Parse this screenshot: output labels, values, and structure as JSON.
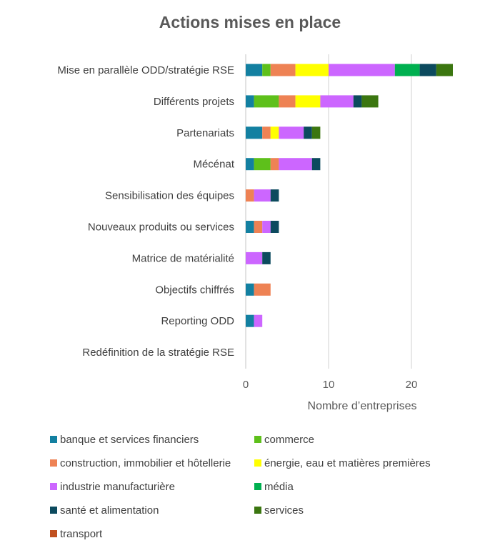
{
  "chart_data": {
    "type": "bar",
    "orientation": "horizontal",
    "stacked": true,
    "title": "Actions mises en place",
    "xlabel": "Nombre d’entreprises",
    "ylabel": "",
    "xlim": [
      0,
      25
    ],
    "xticks": [
      0,
      10,
      20
    ],
    "grid": true,
    "legend_position": "bottom",
    "categories": [
      "Mise en parallèle ODD/stratégie RSE",
      "Différents projets",
      "Partenariats",
      "Mécénat",
      "Sensibilisation des équipes",
      "Nouveaux produits ou services",
      "Matrice de matérialité",
      "Objectifs chiffrés",
      "Reporting ODD",
      "Redéfinition de la stratégie RSE"
    ],
    "series": [
      {
        "name": "banque et services financiers",
        "color": "#1380A1",
        "values": [
          2,
          1,
          2,
          1,
          0,
          1,
          0,
          1,
          1,
          0
        ]
      },
      {
        "name": "commerce",
        "color": "#5EC01B",
        "values": [
          1,
          3,
          0,
          2,
          0,
          0,
          0,
          0,
          0,
          0
        ]
      },
      {
        "name": "construction, immobilier et hôtellerie",
        "color": "#EE8254",
        "values": [
          3,
          2,
          1,
          1,
          1,
          1,
          0,
          2,
          0,
          0
        ]
      },
      {
        "name": "énergie, eau et matières premières",
        "color": "#FFFF00",
        "values": [
          4,
          3,
          1,
          0,
          0,
          0,
          0,
          0,
          0,
          0
        ]
      },
      {
        "name": "industrie manufacturière",
        "color": "#CC66FF",
        "values": [
          8,
          4,
          3,
          4,
          2,
          1,
          2,
          0,
          1,
          0
        ]
      },
      {
        "name": "média",
        "color": "#00B050",
        "values": [
          3,
          0,
          0,
          0,
          0,
          0,
          0,
          0,
          0,
          0
        ]
      },
      {
        "name": "santé et alimentation",
        "color": "#0C4A5E",
        "values": [
          2,
          1,
          1,
          1,
          1,
          1,
          1,
          0,
          0,
          0
        ]
      },
      {
        "name": "services",
        "color": "#3B7610",
        "values": [
          2,
          2,
          1,
          0,
          0,
          0,
          0,
          0,
          0,
          0
        ]
      },
      {
        "name": "transport",
        "color": "#C0501F",
        "values": [
          0,
          0,
          0,
          0,
          0,
          0,
          0,
          0,
          0,
          0
        ]
      }
    ]
  }
}
